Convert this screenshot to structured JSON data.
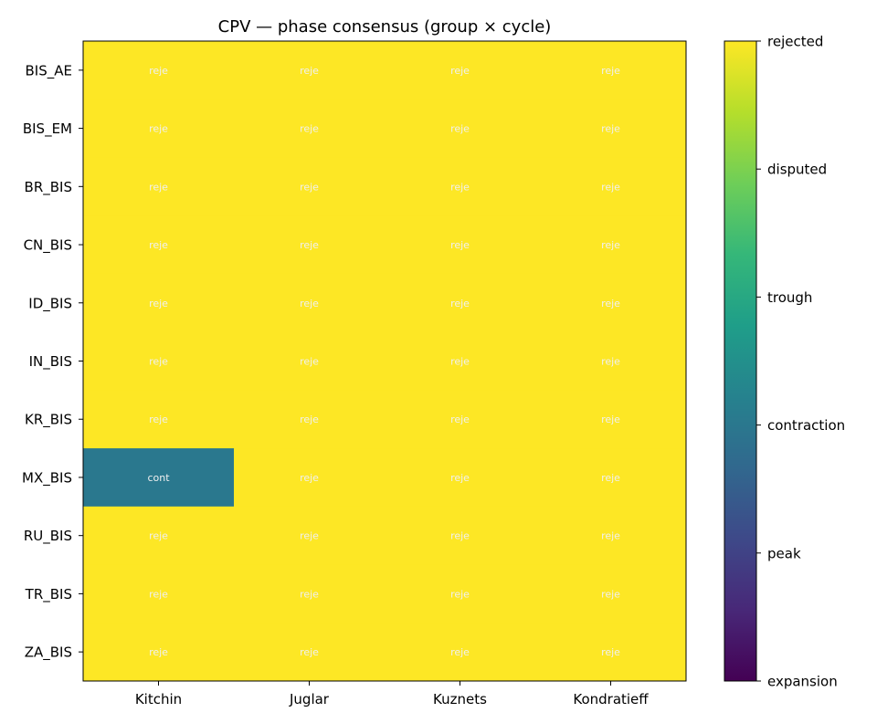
{
  "chart_data": {
    "type": "heatmap",
    "title": "CPV — phase consensus (group × cycle)",
    "rows": [
      "BIS_AE",
      "BIS_EM",
      "BR_BIS",
      "CN_BIS",
      "ID_BIS",
      "IN_BIS",
      "KR_BIS",
      "MX_BIS",
      "RU_BIS",
      "TR_BIS",
      "ZA_BIS"
    ],
    "columns": [
      "Kitchin",
      "Juglar",
      "Kuznets",
      "Kondratieff"
    ],
    "values": [
      [
        "rejected",
        "rejected",
        "rejected",
        "rejected"
      ],
      [
        "rejected",
        "rejected",
        "rejected",
        "rejected"
      ],
      [
        "rejected",
        "rejected",
        "rejected",
        "rejected"
      ],
      [
        "rejected",
        "rejected",
        "rejected",
        "rejected"
      ],
      [
        "rejected",
        "rejected",
        "rejected",
        "rejected"
      ],
      [
        "rejected",
        "rejected",
        "rejected",
        "rejected"
      ],
      [
        "rejected",
        "rejected",
        "rejected",
        "rejected"
      ],
      [
        "contraction",
        "rejected",
        "rejected",
        "rejected"
      ],
      [
        "rejected",
        "rejected",
        "rejected",
        "rejected"
      ],
      [
        "rejected",
        "rejected",
        "rejected",
        "rejected"
      ],
      [
        "rejected",
        "rejected",
        "rejected",
        "rejected"
      ]
    ],
    "cell_labels": [
      [
        "reje",
        "reje",
        "reje",
        "reje"
      ],
      [
        "reje",
        "reje",
        "reje",
        "reje"
      ],
      [
        "reje",
        "reje",
        "reje",
        "reje"
      ],
      [
        "reje",
        "reje",
        "reje",
        "reje"
      ],
      [
        "reje",
        "reje",
        "reje",
        "reje"
      ],
      [
        "reje",
        "reje",
        "reje",
        "reje"
      ],
      [
        "reje",
        "reje",
        "reje",
        "reje"
      ],
      [
        "cont",
        "reje",
        "reje",
        "reje"
      ],
      [
        "reje",
        "reje",
        "reje",
        "reje"
      ],
      [
        "reje",
        "reje",
        "reje",
        "reje"
      ],
      [
        "reje",
        "reje",
        "reje",
        "reje"
      ]
    ],
    "categories": [
      "expansion",
      "peak",
      "contraction",
      "trough",
      "disputed",
      "rejected"
    ],
    "category_colors": {
      "expansion": "#440154",
      "peak": "#414487",
      "contraction": "#2a788e",
      "trough": "#22a884",
      "disputed": "#7ad151",
      "rejected": "#fde725"
    },
    "colormap": "viridis",
    "colorbar_stops": [
      "#440154",
      "#482878",
      "#3e4989",
      "#31688e",
      "#26828e",
      "#1f9e89",
      "#35b779",
      "#6ece58",
      "#b5de2b",
      "#fde725"
    ]
  }
}
